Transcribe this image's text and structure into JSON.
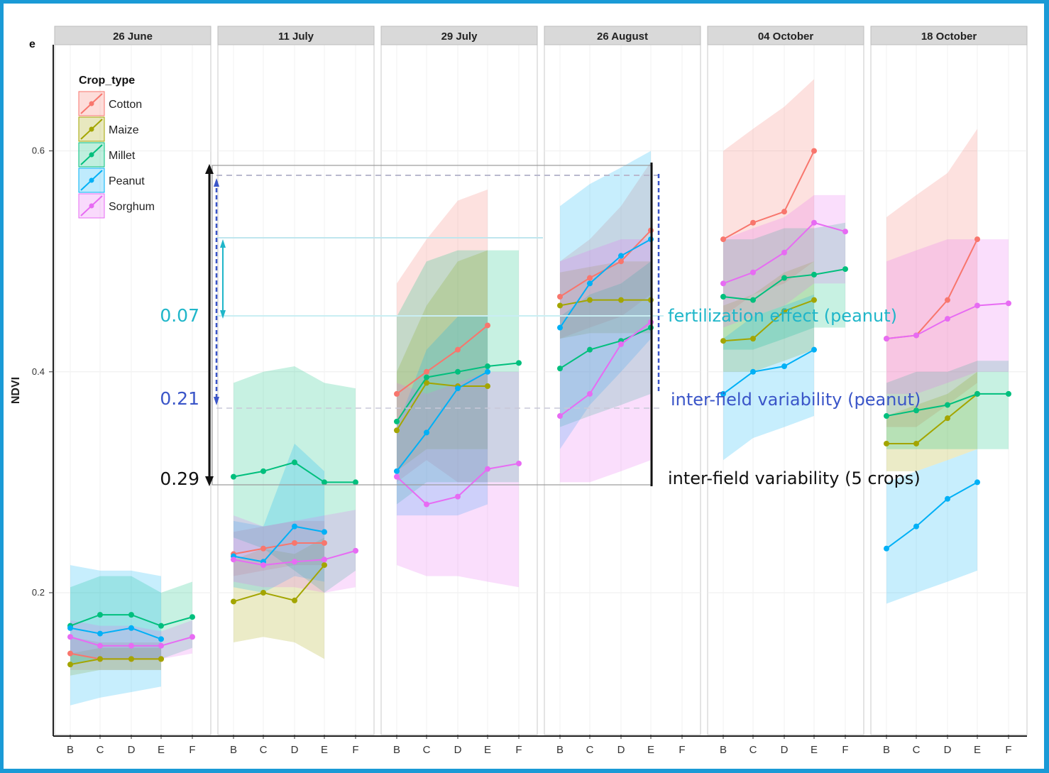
{
  "chart_data": {
    "type": "line",
    "panel_tag": "e",
    "ylabel": "NDVI",
    "xlabel": "",
    "ylim": [
      0.07,
      0.66
    ],
    "yticks": [
      {
        "value": 0.2,
        "label": "0.2"
      },
      {
        "value": 0.4,
        "label": "0.4"
      },
      {
        "value": 0.6,
        "label": "0.6"
      }
    ],
    "categories": [
      "B",
      "C",
      "D",
      "E",
      "F"
    ],
    "legend": {
      "title": "Crop_type",
      "position": "top-left",
      "entries": [
        "Cotton",
        "Maize",
        "Millet",
        "Peanut",
        "Sorghum"
      ]
    },
    "colors": {
      "Cotton": "#f8766d",
      "Maize": "#a3a500",
      "Millet": "#00bf7d",
      "Peanut": "#00b0f6",
      "Sorghum": "#e76bf3"
    },
    "facets": [
      {
        "label": "26 June",
        "series": [
          {
            "name": "Cotton",
            "values": [
              0.145,
              0.14,
              0.14,
              0.14,
              null
            ],
            "lo": [
              0.13,
              0.13,
              0.13,
              0.13,
              null
            ],
            "hi": [
              0.16,
              0.155,
              0.155,
              0.155,
              null
            ]
          },
          {
            "name": "Maize",
            "values": [
              0.135,
              0.14,
              0.14,
              0.14,
              null
            ],
            "lo": [
              0.125,
              0.13,
              0.13,
              0.13,
              null
            ],
            "hi": [
              0.145,
              0.15,
              0.15,
              0.15,
              null
            ]
          },
          {
            "name": "Millet",
            "values": [
              0.17,
              0.18,
              0.18,
              0.17,
              0.178
            ],
            "lo": [
              0.135,
              0.14,
              0.14,
              0.14,
              0.15
            ],
            "hi": [
              0.205,
              0.215,
              0.215,
              0.2,
              0.21
            ]
          },
          {
            "name": "Peanut",
            "values": [
              0.168,
              0.163,
              0.168,
              0.158,
              null
            ],
            "lo": [
              0.098,
              0.105,
              0.11,
              0.115,
              null
            ],
            "hi": [
              0.225,
              0.22,
              0.22,
              0.215,
              null
            ]
          },
          {
            "name": "Sorghum",
            "values": [
              0.16,
              0.152,
              0.152,
              0.152,
              0.16
            ],
            "lo": [
              0.145,
              0.14,
              0.14,
              0.14,
              0.145
            ],
            "hi": [
              0.175,
              0.17,
              0.17,
              0.165,
              0.175
            ]
          }
        ]
      },
      {
        "label": "11 July",
        "series": [
          {
            "name": "Cotton",
            "values": [
              0.235,
              0.24,
              0.245,
              0.245,
              null
            ],
            "lo": [
              0.215,
              0.22,
              0.225,
              0.225,
              null
            ],
            "hi": [
              0.255,
              0.26,
              0.265,
              0.265,
              null
            ]
          },
          {
            "name": "Maize",
            "values": [
              0.192,
              0.2,
              0.193,
              0.225,
              null
            ],
            "lo": [
              0.155,
              0.16,
              0.155,
              0.14,
              null
            ],
            "hi": [
              0.23,
              0.24,
              0.235,
              0.25,
              null
            ]
          },
          {
            "name": "Millet",
            "values": [
              0.305,
              0.31,
              0.318,
              0.3,
              0.3
            ],
            "lo": [
              0.25,
              0.24,
              0.22,
              0.2,
              0.22
            ],
            "hi": [
              0.39,
              0.4,
              0.405,
              0.39,
              0.385
            ]
          },
          {
            "name": "Peanut",
            "values": [
              0.233,
              0.228,
              0.26,
              0.255,
              null
            ],
            "lo": [
              0.205,
              0.2,
              0.215,
              0.21,
              null
            ],
            "hi": [
              0.265,
              0.26,
              0.335,
              0.31,
              null
            ]
          },
          {
            "name": "Sorghum",
            "values": [
              0.23,
              0.225,
              0.228,
              0.23,
              0.238
            ],
            "lo": [
              0.21,
              0.205,
              0.205,
              0.2,
              0.205
            ],
            "hi": [
              0.27,
              0.26,
              0.265,
              0.27,
              0.275
            ]
          }
        ]
      },
      {
        "label": "29 July",
        "series": [
          {
            "name": "Cotton",
            "values": [
              0.38,
              0.4,
              0.42,
              0.442,
              null
            ],
            "lo": [
              0.3,
              0.32,
              0.3,
              0.3,
              null
            ],
            "hi": [
              0.48,
              0.52,
              0.555,
              0.565,
              null
            ]
          },
          {
            "name": "Maize",
            "values": [
              0.347,
              0.39,
              0.387,
              0.387,
              null
            ],
            "lo": [
              0.31,
              0.33,
              0.33,
              0.33,
              null
            ],
            "hi": [
              0.4,
              0.46,
              0.5,
              0.51,
              null
            ]
          },
          {
            "name": "Millet",
            "values": [
              0.355,
              0.395,
              0.4,
              0.405,
              0.408
            ],
            "lo": [
              0.28,
              0.3,
              0.3,
              0.3,
              0.3
            ],
            "hi": [
              0.45,
              0.5,
              0.51,
              0.51,
              0.51
            ]
          },
          {
            "name": "Peanut",
            "values": [
              0.31,
              0.345,
              0.385,
              0.4,
              null
            ],
            "lo": [
              0.27,
              0.27,
              0.27,
              0.28,
              null
            ],
            "hi": [
              0.35,
              0.42,
              0.45,
              0.45,
              null
            ]
          },
          {
            "name": "Sorghum",
            "values": [
              0.305,
              0.28,
              0.287,
              0.312,
              0.317
            ],
            "lo": [
              0.225,
              0.215,
              0.215,
              0.21,
              0.205
            ],
            "hi": [
              0.39,
              0.38,
              0.39,
              0.4,
              0.4
            ]
          }
        ]
      },
      {
        "label": "26 August",
        "series": [
          {
            "name": "Cotton",
            "values": [
              0.468,
              0.485,
              0.5,
              0.528,
              null
            ],
            "lo": [
              0.43,
              0.44,
              0.45,
              0.47,
              null
            ],
            "hi": [
              0.5,
              0.52,
              0.55,
              0.59,
              null
            ]
          },
          {
            "name": "Maize",
            "values": [
              0.46,
              0.465,
              0.465,
              0.465,
              null
            ],
            "lo": [
              0.43,
              0.435,
              0.435,
              0.435,
              null
            ],
            "hi": [
              0.49,
              0.495,
              0.5,
              0.5,
              null
            ]
          },
          {
            "name": "Millet",
            "values": [
              0.403,
              0.42,
              0.428,
              0.44,
              null
            ],
            "lo": [
              0.35,
              0.36,
              0.37,
              0.38,
              null
            ],
            "hi": [
              0.45,
              0.47,
              0.48,
              0.5,
              null
            ]
          },
          {
            "name": "Peanut",
            "values": [
              0.44,
              0.48,
              0.505,
              0.52,
              null
            ],
            "lo": [
              0.33,
              0.37,
              0.4,
              0.43,
              null
            ],
            "hi": [
              0.55,
              0.57,
              0.585,
              0.6,
              null
            ]
          },
          {
            "name": "Sorghum",
            "values": [
              0.36,
              0.38,
              0.425,
              0.445,
              null
            ],
            "lo": [
              0.3,
              0.3,
              0.31,
              0.32,
              null
            ],
            "hi": [
              0.5,
              0.51,
              0.52,
              0.52,
              null
            ]
          }
        ]
      },
      {
        "label": "04 October",
        "series": [
          {
            "name": "Cotton",
            "values": [
              0.52,
              0.535,
              0.545,
              0.6,
              null
            ],
            "lo": [
              0.45,
              0.47,
              0.48,
              0.5,
              null
            ],
            "hi": [
              0.6,
              0.62,
              0.64,
              0.665,
              null
            ]
          },
          {
            "name": "Maize",
            "values": [
              0.428,
              0.43,
              0.455,
              0.465,
              null
            ],
            "lo": [
              0.4,
              0.4,
              0.41,
              0.42,
              null
            ],
            "hi": [
              0.46,
              0.47,
              0.49,
              0.5,
              null
            ]
          },
          {
            "name": "Millet",
            "values": [
              0.468,
              0.465,
              0.485,
              0.488,
              0.493
            ],
            "lo": [
              0.42,
              0.42,
              0.43,
              0.44,
              0.44
            ],
            "hi": [
              0.52,
              0.52,
              0.53,
              0.53,
              0.535
            ]
          },
          {
            "name": "Peanut",
            "values": [
              0.38,
              0.4,
              0.405,
              0.42,
              null
            ],
            "lo": [
              0.32,
              0.34,
              0.35,
              0.36,
              null
            ],
            "hi": [
              0.43,
              0.45,
              0.46,
              0.47,
              null
            ]
          },
          {
            "name": "Sorghum",
            "values": [
              0.48,
              0.49,
              0.508,
              0.535,
              0.527
            ],
            "lo": [
              0.44,
              0.45,
              0.46,
              0.48,
              0.48
            ],
            "hi": [
              0.52,
              0.53,
              0.54,
              0.56,
              0.56
            ]
          }
        ]
      },
      {
        "label": "18 October",
        "series": [
          {
            "name": "Cotton",
            "values": [
              0.43,
              0.433,
              0.465,
              0.52,
              null
            ],
            "lo": [
              0.35,
              0.35,
              0.37,
              0.39,
              null
            ],
            "hi": [
              0.54,
              0.56,
              0.58,
              0.62,
              null
            ]
          },
          {
            "name": "Maize",
            "values": [
              0.335,
              0.335,
              0.358,
              0.38,
              null
            ],
            "lo": [
              0.31,
              0.31,
              0.32,
              0.33,
              null
            ],
            "hi": [
              0.36,
              0.37,
              0.38,
              0.4,
              null
            ]
          },
          {
            "name": "Millet",
            "values": [
              0.36,
              0.365,
              0.37,
              0.38,
              0.38
            ],
            "lo": [
              0.33,
              0.33,
              0.33,
              0.33,
              0.33
            ],
            "hi": [
              0.39,
              0.4,
              0.4,
              0.41,
              0.41
            ]
          },
          {
            "name": "Peanut",
            "values": [
              0.24,
              0.26,
              0.285,
              0.3,
              null
            ],
            "lo": [
              0.19,
              0.2,
              0.21,
              0.22,
              null
            ],
            "hi": [
              0.3,
              0.31,
              0.32,
              0.33,
              null
            ]
          },
          {
            "name": "Sorghum",
            "values": [
              0.43,
              0.433,
              0.448,
              0.46,
              0.462
            ],
            "lo": [
              0.38,
              0.38,
              0.39,
              0.4,
              0.4
            ],
            "hi": [
              0.5,
              0.51,
              0.52,
              0.52,
              0.52
            ]
          }
        ]
      }
    ],
    "annotations": [
      {
        "text": "0.07",
        "color": "#1fb6c9"
      },
      {
        "text": "0.21",
        "color": "#3a55c8"
      },
      {
        "text": "0.29",
        "color": "#111111"
      },
      {
        "text": "fertilization effect (peanut)",
        "color": "#1fb6c9"
      },
      {
        "text": "inter-field variability (peanut)",
        "color": "#3a55c8"
      },
      {
        "text": "inter-field variability (5 crops)",
        "color": "#111111"
      }
    ],
    "grid": true
  }
}
